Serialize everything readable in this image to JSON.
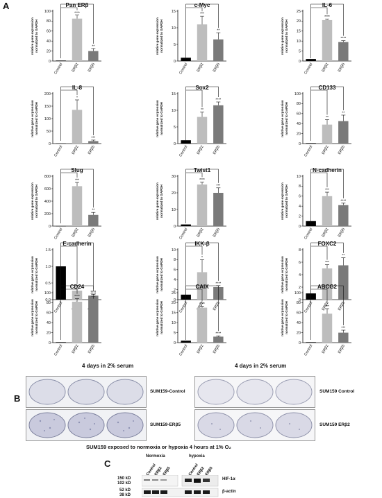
{
  "panels": {
    "a": "A",
    "b": "B",
    "c": "C"
  },
  "common": {
    "ylabel_line1": "relative gene expression",
    "ylabel_line2": "normalized to GAPDH",
    "categories": [
      "Control",
      "ERβ2",
      "ERβ5"
    ]
  },
  "chart_data": [
    {
      "type": "bar",
      "title": "Pan ERβ",
      "categories": [
        "Control",
        "ERβ2",
        "ERβ5"
      ],
      "values": [
        1,
        85,
        20
      ],
      "errors": [
        0,
        7,
        5
      ],
      "ylim": [
        0,
        100
      ],
      "yticks": [
        "0",
        "20",
        "40",
        "60",
        "80",
        "100"
      ],
      "significance": [
        "",
        "****",
        "**"
      ]
    },
    {
      "type": "bar",
      "title": "c-Myc",
      "categories": [
        "Control",
        "ERβ2",
        "ERβ5"
      ],
      "values": [
        1,
        11,
        6.5
      ],
      "errors": [
        0,
        2.5,
        2
      ],
      "ylim": [
        0,
        15
      ],
      "yticks": [
        "0",
        "5",
        "10",
        "15"
      ],
      "significance": [
        "",
        "***",
        "**"
      ]
    },
    {
      "type": "bar",
      "title": "IL-6",
      "categories": [
        "Control",
        "ERβ2",
        "ERβ5"
      ],
      "values": [
        1,
        20.5,
        9.5
      ],
      "errors": [
        0,
        0.5,
        0.7
      ],
      "ylim": [
        0,
        25
      ],
      "yticks": [
        "0",
        "5",
        "10",
        "15",
        "20",
        "25"
      ],
      "significance": [
        "",
        "****",
        "****"
      ]
    },
    {
      "type": "bar",
      "title": "IL-8",
      "categories": [
        "Control",
        "ERβ2",
        "ERβ5"
      ],
      "values": [
        1,
        135,
        10
      ],
      "errors": [
        0,
        40,
        4
      ],
      "ylim": [
        0,
        200
      ],
      "yticks": [
        "0",
        "50",
        "100",
        "150",
        "200"
      ],
      "significance": [
        "",
        "*",
        "***"
      ]
    },
    {
      "type": "bar",
      "title": "Sox2",
      "categories": [
        "Control",
        "ERβ2",
        "ERβ5"
      ],
      "values": [
        1,
        8,
        11.5
      ],
      "errors": [
        0,
        1.5,
        1
      ],
      "ylim": [
        0,
        15
      ],
      "yticks": [
        "0",
        "5",
        "10",
        "15"
      ],
      "significance": [
        "",
        "**",
        "****"
      ]
    },
    {
      "type": "bar",
      "title": "CD133",
      "categories": [
        "Control",
        "ERβ2",
        "ERβ5"
      ],
      "values": [
        1,
        38,
        45
      ],
      "errors": [
        0,
        10,
        12
      ],
      "ylim": [
        0,
        100
      ],
      "yticks": [
        "0",
        "20",
        "40",
        "60",
        "80",
        "100"
      ],
      "significance": [
        "",
        "**",
        "**"
      ]
    },
    {
      "type": "bar",
      "title": "Slug",
      "categories": [
        "Control",
        "ERβ2",
        "ERβ5"
      ],
      "values": [
        1,
        640,
        180
      ],
      "errors": [
        0,
        60,
        40
      ],
      "ylim": [
        0,
        800
      ],
      "yticks": [
        "0",
        "200",
        "400",
        "600",
        "800"
      ],
      "significance": [
        "",
        "***",
        "**"
      ]
    },
    {
      "type": "bar",
      "title": "Twist1",
      "categories": [
        "Control",
        "ERβ2",
        "ERβ5"
      ],
      "values": [
        1,
        25,
        20
      ],
      "errors": [
        0,
        1.5,
        3
      ],
      "ylim": [
        0,
        30
      ],
      "yticks": [
        "0",
        "10",
        "20",
        "30"
      ],
      "significance": [
        "",
        "****",
        "***"
      ]
    },
    {
      "type": "bar",
      "title": "N-cadherin",
      "categories": [
        "Control",
        "ERβ2",
        "ERβ5"
      ],
      "values": [
        1,
        6,
        4.2
      ],
      "errors": [
        0,
        0.8,
        0.4
      ],
      "ylim": [
        0,
        10
      ],
      "yticks": [
        "0",
        "2",
        "4",
        "6",
        "8",
        "10"
      ],
      "significance": [
        "",
        "***",
        "****"
      ]
    },
    {
      "type": "bar",
      "title": "E-cadherin",
      "categories": [
        "Control",
        "ERβ2",
        "ERβ5"
      ],
      "values": [
        1,
        0.27,
        0.12
      ],
      "errors": [
        0,
        0.05,
        0.04
      ],
      "ylim": [
        0,
        1.5
      ],
      "yticks": [
        "0.0",
        "0.5",
        "1.0",
        "1.5"
      ],
      "significance": [
        "",
        "****",
        "****"
      ]
    },
    {
      "type": "bar",
      "title": "IKK-β",
      "categories": [
        "Control",
        "ERβ2",
        "ERβ5"
      ],
      "values": [
        1,
        5.5,
        2.5
      ],
      "errors": [
        0,
        2.5,
        0.3
      ],
      "ylim": [
        0,
        10
      ],
      "yticks": [
        "0",
        "2",
        "4",
        "6",
        "8",
        "10"
      ],
      "significance": [
        "",
        "*",
        "****"
      ]
    },
    {
      "type": "bar",
      "title": "FOXC2",
      "categories": [
        "Control",
        "ERβ2",
        "ERβ5"
      ],
      "values": [
        1,
        5,
        5.5
      ],
      "errors": [
        0,
        0.6,
        1.2
      ],
      "ylim": [
        0,
        8
      ],
      "yticks": [
        "0",
        "2",
        "4",
        "6",
        "8"
      ],
      "significance": [
        "",
        "***",
        "**"
      ]
    },
    {
      "type": "bar",
      "title": "CD24",
      "categories": [
        "Control",
        "ERβ2",
        "ERβ5"
      ],
      "values": [
        1,
        82,
        88
      ],
      "errors": [
        0,
        6,
        5
      ],
      "ylim": [
        0,
        100
      ],
      "yticks": [
        "0",
        "20",
        "40",
        "60",
        "80",
        "100"
      ],
      "significance": [
        "",
        "****",
        "****"
      ]
    },
    {
      "type": "bar",
      "title": "CAIX",
      "categories": [
        "Control",
        "ERβ2",
        "ERβ5"
      ],
      "values": [
        1,
        17.5,
        3
      ],
      "errors": [
        0,
        0.7,
        0.4
      ],
      "ylim": [
        0,
        25
      ],
      "yticks": [
        "0",
        "5",
        "10",
        "15",
        "20",
        "25"
      ],
      "significance": [
        "",
        "****",
        "****"
      ]
    },
    {
      "type": "bar",
      "title": "ABCG2",
      "categories": [
        "Control",
        "ERβ2",
        "ERβ5"
      ],
      "values": [
        1,
        58,
        20
      ],
      "errors": [
        0,
        10,
        5
      ],
      "ylim": [
        0,
        100
      ],
      "yticks": [
        "0",
        "20",
        "40",
        "60",
        "80",
        "100"
      ],
      "significance": [
        "",
        "***",
        "***"
      ]
    }
  ],
  "panel_b": {
    "left_title": "4 days in 2% serum",
    "right_title": "4 days in 2% serum",
    "left_labels": [
      "SUM159-Control",
      "SUM159-ERβ5"
    ],
    "right_labels": [
      "SUM159 Control",
      "SUM159 ERβ2"
    ]
  },
  "panel_c": {
    "title": "SUM159 exposed to normoxia or hypoxia 4 hours at 1% O₂",
    "groups": [
      "Normoxia",
      "hypoxia"
    ],
    "lanes": [
      "Control",
      "ERβ2",
      "ERβ5",
      "Control",
      "ERβ2",
      "ERβ5"
    ],
    "markers": [
      "150 kD",
      "102 kD",
      "52 kD",
      "38 kD"
    ],
    "proteins": [
      "HIF-1α",
      "β-actin"
    ]
  }
}
